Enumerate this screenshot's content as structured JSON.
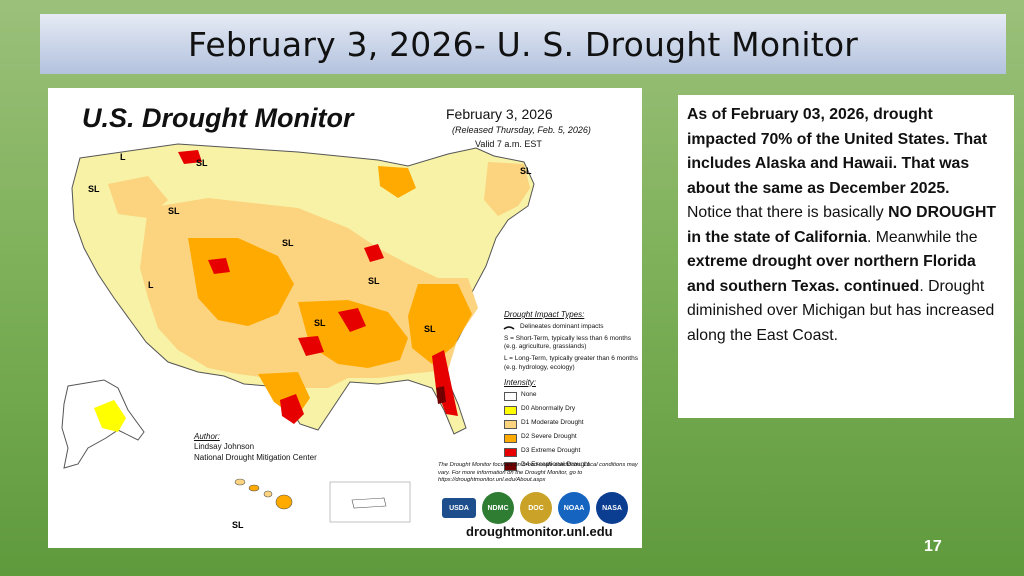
{
  "slide": {
    "title": "February 3, 2026- U. S. Drought Monitor",
    "page_number": "17"
  },
  "map": {
    "title": "U.S. Drought Monitor",
    "date": "February 3, 2026",
    "released": "(Released Thursday, Feb. 5, 2026)",
    "valid": "Valid 7 a.m. EST",
    "impact_types_header": "Drought Impact Types:",
    "impact_dominant": "Delineates dominant impacts",
    "impact_short": "S = Short-Term, typically less than 6 months (e.g. agriculture, grasslands)",
    "impact_long": "L = Long-Term, typically greater than 6 months (e.g. hydrology, ecology)",
    "intensity_header": "Intensity:",
    "intensity": [
      {
        "label": "None",
        "color": "#ffffff"
      },
      {
        "label": "D0 Abnormally Dry",
        "color": "#ffff00"
      },
      {
        "label": "D1 Moderate Drought",
        "color": "#fcd37f"
      },
      {
        "label": "D2 Severe Drought",
        "color": "#ffaa00"
      },
      {
        "label": "D3 Extreme Drought",
        "color": "#e60000"
      },
      {
        "label": "D4 Exceptional Drought",
        "color": "#730000"
      }
    ],
    "author_label": "Author:",
    "author_name": "Lindsay Johnson",
    "author_org": "National Drought Mitigation Center",
    "disclaimer": "The Drought Monitor focuses on broad-scale conditions. Local conditions may vary. For more information on the Drought Monitor, go to https://droughtmonitor.unl.edu/About.aspx",
    "logos": [
      "USDA",
      "NDMC",
      "DOC",
      "NOAA",
      "NASA"
    ],
    "url": "droughtmonitor.unl.edu",
    "map_labels": {
      "sl": "SL",
      "l": "L"
    }
  },
  "text": {
    "bold1": "As of February 03, 2026, drought impacted 70% of the United States. That includes Alaska and Hawaii. That was about the same as December 2025.",
    "plain1": "   Notice that there is basically ",
    "bold2": "NO DROUGHT in the state of California",
    "plain2": ". Meanwhile the ",
    "bold3": "extreme drought over northern Florida and southern Texas. continued",
    "plain3": ". Drought diminished over Michigan but has increased along the East Coast."
  }
}
